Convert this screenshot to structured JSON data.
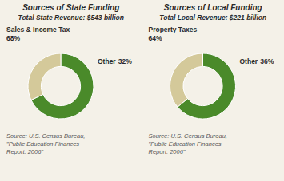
{
  "chart_data": [
    {
      "type": "donut",
      "title": "Sources of State Funding",
      "subtitle": "Total State Revenue: $543 billion",
      "categories": [
        "Sales & Income Tax",
        "Other"
      ],
      "values": [
        68,
        32
      ],
      "value_labels": [
        "68%",
        "32%"
      ],
      "data_labels": true,
      "colors": [
        "#4a8a2a",
        "#d4c99a"
      ],
      "annotations": [
        "Source: U.S. Census Bureau,",
        "\"Public Education Finances",
        "Report: 2006\""
      ]
    },
    {
      "type": "donut",
      "title": "Sources of Local Funding",
      "subtitle": "Total Local Revenue: $221 billion",
      "categories": [
        "Property Taxes",
        "Other"
      ],
      "values": [
        64,
        36
      ],
      "value_labels": [
        "64%",
        "36%"
      ],
      "data_labels": true,
      "colors": [
        "#4a8a2a",
        "#d4c99a"
      ],
      "annotations": [
        "Source: U.S. Census Bureau,",
        "\"Public Education Finances",
        "Report: 2006\""
      ]
    }
  ]
}
